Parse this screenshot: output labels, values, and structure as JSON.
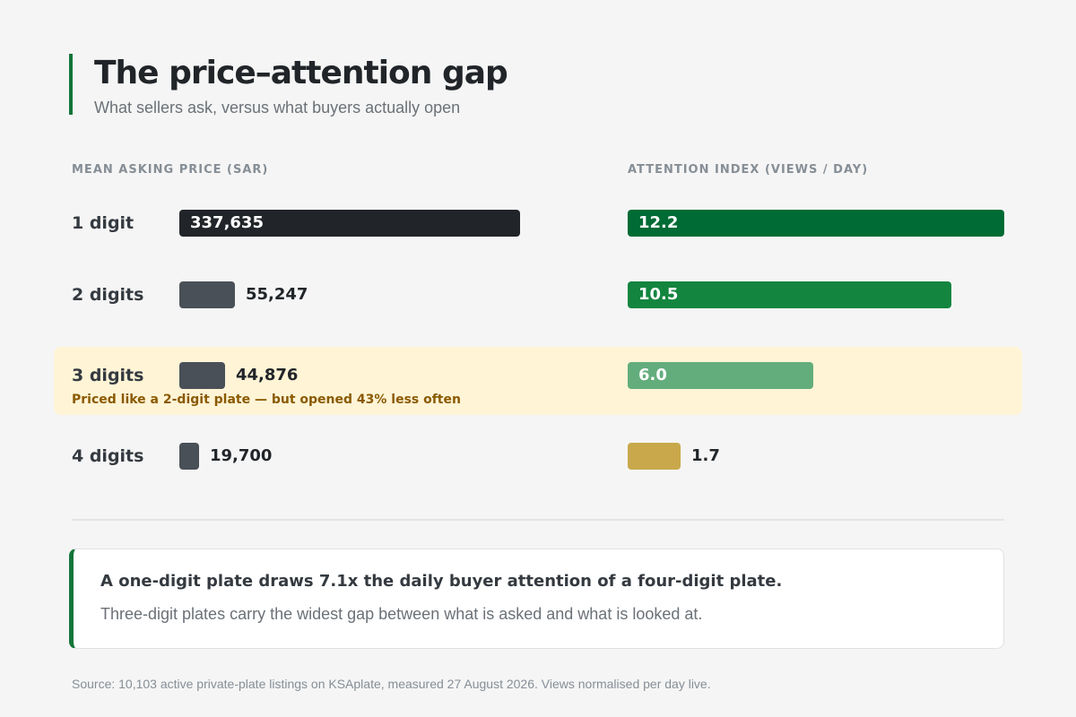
{
  "header": {
    "title": "The price–attention gap",
    "subtitle": "What sellers ask, versus what buyers actually open"
  },
  "chart_data": {
    "type": "bar",
    "orientation": "horizontal",
    "categories": [
      "1 digit",
      "2 digits",
      "3 digits",
      "4 digits"
    ],
    "series": [
      {
        "name": "MEAN ASKING PRICE (SAR)",
        "values": [
          337635,
          55247,
          44876,
          19700
        ],
        "labels": [
          "337,635",
          "55,247",
          "44,876",
          "19,700"
        ]
      },
      {
        "name": "ATTENTION INDEX (VIEWS / DAY)",
        "values": [
          12.2,
          10.5,
          6.0,
          1.7
        ],
        "labels": [
          "12.2",
          "10.5",
          "6.0",
          "1.7"
        ]
      }
    ],
    "highlighted_category": "3 digits",
    "annotations": [
      "Priced like a 2-digit plate — but opened 43% less often"
    ],
    "colors": {
      "price": [
        "#212529",
        "#495057",
        "#495057",
        "#495057"
      ],
      "attention": [
        "#006b35",
        "#13853f",
        "#63ad7c",
        "#c8a84b"
      ],
      "highlight_bg": "#fff4d6",
      "note_text": "#8a5a00",
      "accent": "#13753a"
    }
  },
  "callout": {
    "headline": "A one-digit plate draws 7.1x the daily buyer attention of a four-digit plate.",
    "body": "Three-digit plates carry the widest gap between what is asked and what is looked at."
  },
  "footer": {
    "source": "Source: 10,103 active private-plate listings on KSAplate, measured 27 August 2026. Views normalised per day live."
  }
}
